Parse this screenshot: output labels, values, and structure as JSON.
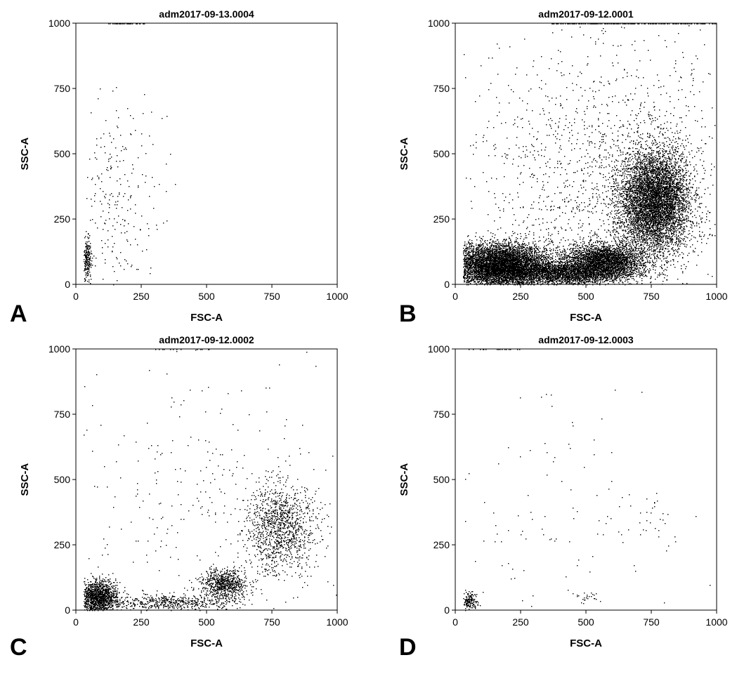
{
  "chart_data": [
    {
      "panel": "A",
      "type": "scatter",
      "title": "adm2017-09-13.0004",
      "xlabel": "FSC-A",
      "ylabel": "SSC-A",
      "xlim": [
        0,
        1000
      ],
      "ylim": [
        0,
        1000
      ],
      "xticks": [
        "0",
        "250",
        "500",
        "750",
        "1000"
      ],
      "yticks": [
        "0",
        "250",
        "500",
        "750",
        "1000"
      ],
      "grid": false,
      "populations": [
        {
          "name": "debris-cluster",
          "center": [
            42,
            95
          ],
          "spread": [
            8,
            40
          ],
          "count": 260
        },
        {
          "name": "scattered",
          "center": [
            150,
            330
          ],
          "spread": [
            90,
            190
          ],
          "count": 260
        }
      ],
      "saturated_ceiling": [
        [
          120,
          260,
          45
        ]
      ]
    },
    {
      "panel": "B",
      "type": "scatter",
      "title": "adm2017-09-12.0001",
      "xlabel": "FSC-A",
      "ylabel": "SSC-A",
      "xlim": [
        0,
        1000
      ],
      "ylim": [
        0,
        1000
      ],
      "xticks": [
        "0",
        "250",
        "500",
        "750",
        "1000"
      ],
      "yticks": [
        "0",
        "250",
        "500",
        "750",
        "1000"
      ],
      "grid": false,
      "populations": [
        {
          "name": "low-fsc-cluster",
          "center": [
            170,
            75
          ],
          "spread": [
            90,
            40
          ],
          "count": 7000
        },
        {
          "name": "mid-band",
          "center": [
            420,
            45
          ],
          "spread": [
            130,
            22
          ],
          "count": 3500
        },
        {
          "name": "cluster-550",
          "center": [
            570,
            95
          ],
          "spread": [
            70,
            30
          ],
          "count": 3000
        },
        {
          "name": "large-cell-cluster",
          "center": [
            760,
            320
          ],
          "spread": [
            65,
            95
          ],
          "count": 6500
        },
        {
          "name": "background",
          "center": [
            600,
            380
          ],
          "spread": [
            280,
            260
          ],
          "count": 1800
        }
      ],
      "saturated_ceiling": [
        [
          350,
          1000,
          220
        ]
      ]
    },
    {
      "panel": "C",
      "type": "scatter",
      "title": "adm2017-09-12.0002",
      "xlabel": "FSC-A",
      "ylabel": "SSC-A",
      "xlim": [
        0,
        1000
      ],
      "ylim": [
        0,
        1000
      ],
      "xticks": [
        "0",
        "250",
        "500",
        "750",
        "1000"
      ],
      "yticks": [
        "0",
        "250",
        "500",
        "750",
        "1000"
      ],
      "grid": false,
      "populations": [
        {
          "name": "low-fsc-cluster",
          "center": [
            85,
            50
          ],
          "spread": [
            35,
            30
          ],
          "count": 1600
        },
        {
          "name": "mid-band",
          "center": [
            330,
            30
          ],
          "spread": [
            150,
            15
          ],
          "count": 600
        },
        {
          "name": "cluster-550",
          "center": [
            570,
            100
          ],
          "spread": [
            45,
            30
          ],
          "count": 800
        },
        {
          "name": "large-cell-cluster",
          "center": [
            780,
            320
          ],
          "spread": [
            70,
            85
          ],
          "count": 1200
        },
        {
          "name": "background",
          "center": [
            500,
            420
          ],
          "spread": [
            280,
            260
          ],
          "count": 300
        }
      ],
      "saturated_ceiling": [
        [
          300,
          600,
          15
        ]
      ]
    },
    {
      "panel": "D",
      "type": "scatter",
      "title": "adm2017-09-12.0003",
      "xlabel": "FSC-A",
      "ylabel": "SSC-A",
      "xlim": [
        0,
        1000
      ],
      "ylim": [
        0,
        1000
      ],
      "xticks": [
        "0",
        "250",
        "500",
        "750",
        "1000"
      ],
      "yticks": [
        "0",
        "250",
        "500",
        "750",
        "1000"
      ],
      "grid": false,
      "populations": [
        {
          "name": "debris-cluster",
          "center": [
            55,
            35
          ],
          "spread": [
            15,
            15
          ],
          "count": 180
        },
        {
          "name": "cluster-500",
          "center": [
            500,
            50
          ],
          "spread": [
            30,
            12
          ],
          "count": 25
        },
        {
          "name": "cluster-750",
          "center": [
            760,
            340
          ],
          "spread": [
            40,
            40
          ],
          "count": 25
        },
        {
          "name": "scattered",
          "center": [
            350,
            300
          ],
          "spread": [
            250,
            250
          ],
          "count": 130
        }
      ],
      "saturated_ceiling": [
        [
          30,
          250,
          20
        ]
      ]
    }
  ]
}
